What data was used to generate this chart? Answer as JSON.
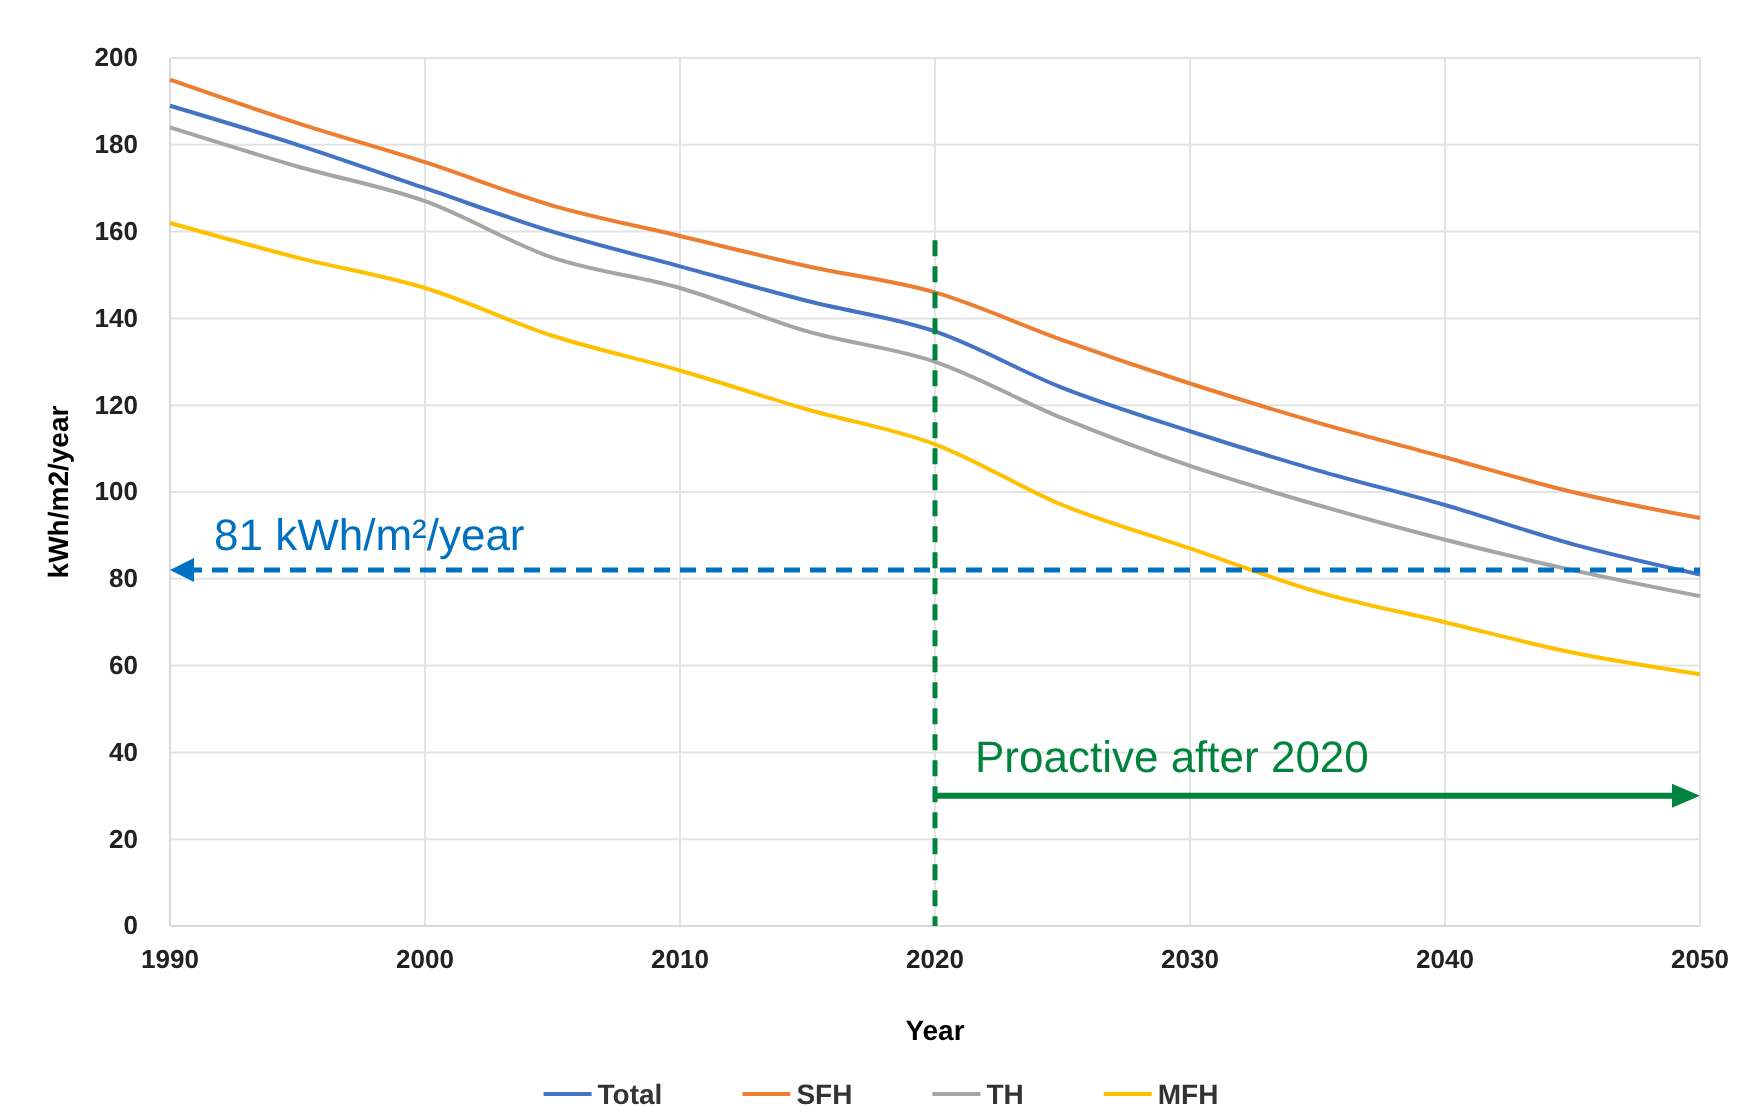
{
  "chart_data": {
    "type": "line",
    "xlabel": "Year",
    "ylabel": "kWh/m2/year",
    "x": [
      1990,
      1995,
      2000,
      2005,
      2010,
      2015,
      2020,
      2025,
      2030,
      2035,
      2040,
      2045,
      2050
    ],
    "series": [
      {
        "name": "Total",
        "color": "#4472c4",
        "values": [
          189,
          180,
          170,
          160,
          152,
          144,
          137,
          124,
          114,
          105,
          97,
          88,
          81
        ]
      },
      {
        "name": "SFH",
        "color": "#ed7d31",
        "values": [
          195,
          185,
          176,
          166,
          159,
          152,
          146,
          135,
          125,
          116,
          108,
          100,
          94
        ]
      },
      {
        "name": "TH",
        "color": "#a5a5a5",
        "values": [
          184,
          175,
          167,
          154,
          147,
          137,
          130,
          117,
          106,
          97,
          89,
          82,
          76
        ]
      },
      {
        "name": "MFH",
        "color": "#ffc000",
        "values": [
          162,
          154,
          147,
          136,
          128,
          119,
          111,
          97,
          87,
          77,
          70,
          63,
          58
        ]
      }
    ],
    "xlim": [
      1990,
      2050
    ],
    "xticks": [
      1990,
      2000,
      2010,
      2020,
      2030,
      2040,
      2050
    ],
    "ylim": [
      0,
      200
    ],
    "yticks": [
      0,
      20,
      40,
      60,
      80,
      100,
      120,
      140,
      160,
      180,
      200
    ],
    "grid": true,
    "legend": "bottom",
    "line_style": "solid",
    "marker": "none",
    "ref_lines": [
      {
        "axis": "y",
        "value": 82,
        "label": "81 kWh/m²/year",
        "color": "#0070c0",
        "line_style": "dashed"
      },
      {
        "axis": "x",
        "value": 2020,
        "color": "#00843d",
        "line_style": "dashed"
      }
    ],
    "annotations": [
      {
        "text": "Proactive after 2020",
        "x": 2020,
        "y": 30
      }
    ]
  }
}
